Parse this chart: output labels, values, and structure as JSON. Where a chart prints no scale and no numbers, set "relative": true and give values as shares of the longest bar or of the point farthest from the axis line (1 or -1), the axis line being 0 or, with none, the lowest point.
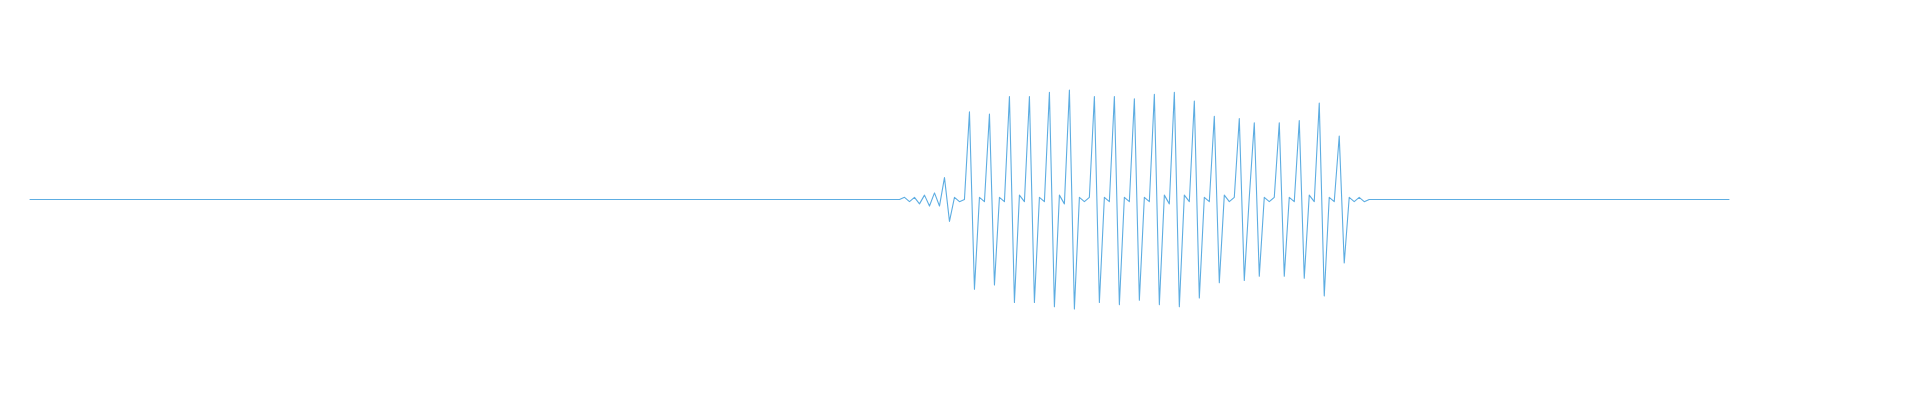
{
  "chart_data": {
    "type": "line",
    "relative": true,
    "tick_labels": false,
    "color": "#5dade2",
    "categories": [
      null,
      null,
      null,
      null,
      null,
      null,
      null,
      null,
      null,
      null,
      null,
      null,
      null,
      null,
      null,
      null,
      null,
      null,
      null,
      null,
      null,
      null,
      null,
      null,
      null,
      null,
      null,
      null,
      null,
      null,
      null,
      null,
      null,
      null,
      null,
      null,
      null,
      null,
      null,
      null,
      null,
      null,
      null,
      null,
      null,
      null,
      null,
      null,
      null,
      null,
      null,
      null,
      null,
      null,
      null,
      null,
      null,
      null,
      null,
      null,
      null,
      null,
      null,
      null,
      null,
      null,
      null,
      null,
      null,
      null,
      null,
      null,
      null,
      null,
      null,
      null,
      null,
      null,
      null,
      null,
      null,
      null,
      null,
      null,
      null,
      null,
      null,
      null,
      null,
      null,
      null,
      null,
      null,
      null,
      null,
      null,
      null,
      null,
      null,
      null,
      null,
      null,
      null,
      null,
      null,
      null,
      null,
      null,
      null,
      null,
      null,
      null,
      null,
      null,
      null,
      null,
      null,
      null,
      null,
      null,
      null,
      null,
      null,
      null,
      null,
      null,
      null,
      null,
      null,
      null,
      null,
      null,
      null,
      null,
      null,
      null,
      null,
      null,
      null,
      null,
      null,
      null,
      null,
      null,
      null,
      null,
      null,
      null,
      null,
      null,
      null,
      null,
      null,
      null,
      null,
      null,
      null,
      null,
      null,
      null,
      null,
      null,
      null,
      null,
      null,
      null,
      null,
      null,
      null,
      null,
      null,
      null,
      null,
      null,
      null,
      null,
      null,
      null,
      null,
      null,
      null,
      null,
      null,
      null,
      null,
      null,
      null,
      null,
      null,
      null,
      null,
      null,
      null,
      null,
      null,
      null,
      null,
      null,
      null,
      null,
      null,
      null,
      null,
      null,
      null,
      null,
      null,
      null,
      null,
      null,
      null,
      null,
      null,
      null,
      null,
      null,
      null,
      null,
      null,
      null,
      null,
      null,
      null,
      null,
      null,
      null,
      null,
      null,
      null,
      null,
      null,
      null,
      null,
      null,
      null,
      null,
      null,
      null,
      null,
      null,
      null,
      null,
      null,
      null,
      null,
      null,
      null,
      null,
      null,
      null,
      null,
      null,
      null,
      null,
      null,
      null,
      null,
      null,
      null,
      null,
      null,
      null,
      null,
      null,
      null,
      null,
      null,
      null,
      null,
      null,
      null,
      null,
      null,
      null,
      null,
      null,
      null,
      null,
      null,
      null,
      null,
      null,
      null,
      null,
      null,
      null,
      null,
      null,
      null,
      null,
      null,
      null,
      null,
      null,
      null,
      null,
      null,
      null,
      null,
      null,
      null,
      null,
      null,
      null,
      null,
      null,
      null,
      null,
      null,
      null,
      null,
      null,
      null,
      null,
      null,
      null,
      null,
      null,
      null,
      null,
      null,
      null,
      null,
      null,
      null,
      null,
      null,
      null,
      null,
      null,
      null,
      null,
      null,
      null,
      null,
      null,
      null,
      null,
      null,
      null,
      null
    ],
    "values": [
      0.5,
      0.5,
      0.5,
      0.5,
      0.5,
      0.5,
      0.5,
      0.5,
      0.5,
      0.5,
      0.5,
      0.5,
      0.5,
      0.5,
      0.5,
      0.5,
      0.5,
      0.5,
      0.5,
      0.5,
      0.5,
      0.5,
      0.5,
      0.5,
      0.5,
      0.5,
      0.5,
      0.5,
      0.5,
      0.5,
      0.5,
      0.5,
      0.5,
      0.5,
      0.5,
      0.5,
      0.5,
      0.5,
      0.5,
      0.5,
      0.5,
      0.5,
      0.5,
      0.5,
      0.5,
      0.5,
      0.5,
      0.5,
      0.5,
      0.5,
      0.5,
      0.5,
      0.5,
      0.5,
      0.5,
      0.5,
      0.5,
      0.5,
      0.5,
      0.5,
      0.5,
      0.5,
      0.5,
      0.5,
      0.5,
      0.5,
      0.5,
      0.5,
      0.5,
      0.5,
      0.5,
      0.5,
      0.5,
      0.5,
      0.5,
      0.5,
      0.5,
      0.5,
      0.5,
      0.5,
      0.5,
      0.5,
      0.5,
      0.5,
      0.5,
      0.5,
      0.5,
      0.5,
      0.5,
      0.5,
      0.5,
      0.5,
      0.5,
      0.5,
      0.5,
      0.5,
      0.5,
      0.5,
      0.5,
      0.5,
      0.5,
      0.5,
      0.5,
      0.5,
      0.5,
      0.5,
      0.5,
      0.5,
      0.5,
      0.5,
      0.5,
      0.5,
      0.5,
      0.5,
      0.5,
      0.5,
      0.5,
      0.5,
      0.5,
      0.5,
      0.5,
      0.5,
      0.5,
      0.5,
      0.5,
      0.5,
      0.5,
      0.5,
      0.5,
      0.5,
      0.5,
      0.5,
      0.5,
      0.5,
      0.5,
      0.5,
      0.5,
      0.5,
      0.5,
      0.5,
      0.5,
      0.5,
      0.5,
      0.5,
      0.5,
      0.5,
      0.5,
      0.5,
      0.5,
      0.5,
      0.5,
      0.5,
      0.5,
      0.5,
      0.5,
      0.5,
      0.5,
      0.5,
      0.5,
      0.5,
      0.5,
      0.5,
      0.5,
      0.5,
      0.5,
      0.5,
      0.5,
      0.5,
      0.5,
      0.5,
      0.5,
      0.5,
      0.5,
      0.5,
      0.5,
      0.51,
      0.49,
      0.51,
      0.48,
      0.52,
      0.47,
      0.53,
      0.47,
      0.6,
      0.4,
      0.51,
      0.49,
      0.5,
      0.9,
      0.09,
      0.51,
      0.49,
      0.89,
      0.11,
      0.51,
      0.49,
      0.97,
      0.03,
      0.52,
      0.49,
      0.97,
      0.03,
      0.51,
      0.49,
      0.99,
      0.01,
      0.52,
      0.48,
      1,
      0,
      0.51,
      0.49,
      0.51,
      0.97,
      0.03,
      0.51,
      0.49,
      0.97,
      0.02,
      0.51,
      0.49,
      0.96,
      0.04,
      0.51,
      0.49,
      0.98,
      0.02,
      0.52,
      0.48,
      0.99,
      0.01,
      0.52,
      0.49,
      0.95,
      0.05,
      0.51,
      0.49,
      0.88,
      0.12,
      0.52,
      0.49,
      0.51,
      0.87,
      0.13,
      0.51,
      0.85,
      0.15,
      0.51,
      0.49,
      0.51,
      0.85,
      0.15,
      0.51,
      0.49,
      0.86,
      0.14,
      0.52,
      0.49,
      0.94,
      0.06,
      0.51,
      0.49,
      0.79,
      0.21,
      0.51,
      0.49,
      0.51,
      0.49,
      0.5,
      0.5,
      0.5,
      0.5,
      0.5,
      0.5,
      0.5,
      0.5,
      0.5,
      0.5,
      0.5,
      0.5,
      0.5,
      0.5,
      0.5,
      0.5,
      0.5,
      0.5,
      0.5,
      0.5,
      0.5,
      0.5,
      0.5,
      0.5,
      0.5,
      0.5,
      0.5,
      0.5,
      0.5,
      0.5,
      0.5,
      0.5,
      0.5,
      0.5,
      0.5,
      0.5,
      0.5,
      0.5,
      0.5,
      0.5,
      0.5,
      0.5,
      0.5,
      0.5,
      0.5,
      0.5,
      0.5,
      0.5,
      0.5,
      0.5,
      0.5,
      0.5,
      0.5,
      0.5,
      0.5,
      0.5,
      0.5,
      0.5,
      0.5,
      0.5,
      0.5,
      0.5,
      0.5,
      0.5,
      0.5,
      0.5,
      0.5,
      0.5,
      0.5,
      0.5,
      0.5,
      0.5,
      0.5
    ]
  }
}
